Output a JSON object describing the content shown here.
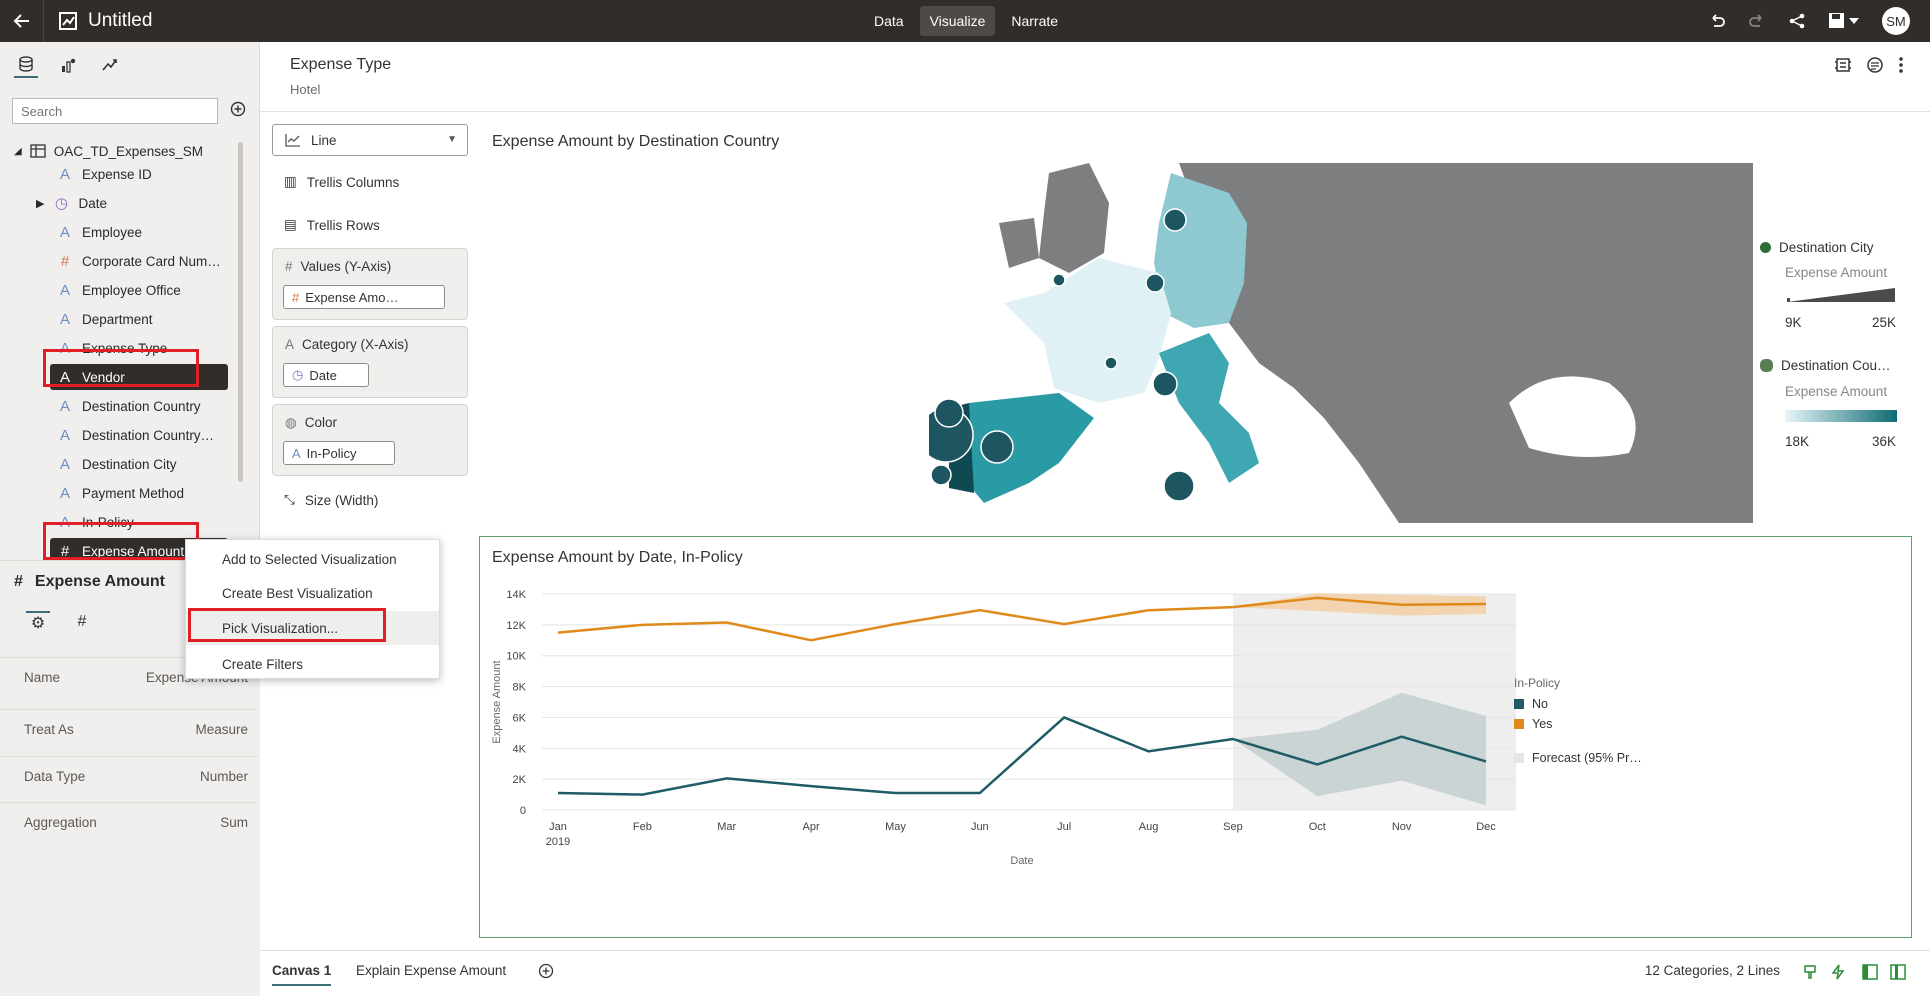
{
  "topbar": {
    "title": "Untitled",
    "modes": [
      "Data",
      "Visualize",
      "Narrate"
    ],
    "active_mode": "Visualize",
    "avatar": "SM"
  },
  "left": {
    "search_placeholder": "Search",
    "dataset": "OAC_TD_Expenses_SM",
    "items": [
      "Expense ID",
      "Date",
      "Employee",
      "Corporate Card Num…",
      "Employee Office",
      "Department",
      "Expense Type",
      "Vendor",
      "Destination Country",
      "Destination Country…",
      "Destination City",
      "Payment Method",
      "In-Policy",
      "Expense Amount"
    ]
  },
  "props": {
    "title": "Expense Amount",
    "rows": [
      {
        "k": "Name",
        "v": "Expense Amount"
      },
      {
        "k": "Treat As",
        "v": "Measure"
      },
      {
        "k": "Data Type",
        "v": "Number"
      },
      {
        "k": "Aggregation",
        "v": "Sum"
      }
    ]
  },
  "context_menu": [
    "Add to Selected Visualization",
    "Create Best Visualization",
    "Pick Visualization...",
    "Create Filters"
  ],
  "filter": {
    "label": "Expense Type",
    "value": "Hotel"
  },
  "grammar": {
    "viz_type": "Line",
    "trellis_columns": "Trellis Columns",
    "trellis_rows": "Trellis Rows",
    "values_label": "Values (Y-Axis)",
    "values_pill": "Expense Amo…",
    "category_label": "Category (X-Axis)",
    "category_pill": "Date",
    "color_label": "Color",
    "color_pill": "In-Policy",
    "size_label": "Size (Width)"
  },
  "map": {
    "title": "Expense Amount by Destination Country",
    "legend": {
      "city_label": "Destination City",
      "city_measure": "Expense Amount",
      "city_min": "9K",
      "city_max": "25K",
      "country_label": "Destination Cou…",
      "country_measure": "Expense Amount",
      "country_min": "18K",
      "country_max": "36K"
    }
  },
  "chart_data": {
    "type": "line",
    "title": "Expense Amount by Date, In-Policy",
    "xlabel": "Date",
    "ylabel": "Expense Amount",
    "categories": [
      "Jan",
      "Feb",
      "Mar",
      "Apr",
      "May",
      "Jun",
      "Jul",
      "Aug",
      "Sep",
      "Oct",
      "Nov",
      "Dec"
    ],
    "x_sublabel": "2019",
    "ylim": [
      0,
      14000
    ],
    "yticks": [
      "0",
      "2K",
      "4K",
      "6K",
      "8K",
      "10K",
      "12K",
      "14K"
    ],
    "series": [
      {
        "name": "No",
        "color": "#1f5c66",
        "values": [
          1100,
          1000,
          2050,
          1550,
          1100,
          1100,
          6000,
          3800,
          4600,
          2950,
          4750,
          3150
        ]
      },
      {
        "name": "Yes",
        "color": "#e08a1c",
        "values": [
          11500,
          12000,
          12150,
          11000,
          12050,
          12950,
          12050,
          12950,
          13150,
          13750,
          13300,
          13350
        ]
      }
    ],
    "forecast_start": "Sep",
    "forecast": {
      "No": {
        "lower": [
          4600,
          900,
          1900,
          300
        ],
        "upper": [
          4600,
          5200,
          7600,
          6100
        ]
      },
      "Yes": {
        "lower": [
          13150,
          12900,
          12600,
          12700
        ],
        "upper": [
          13150,
          14050,
          13950,
          13850
        ]
      }
    },
    "legend_title": "In-Policy",
    "legend_forecast": "Forecast (95% Pr…"
  },
  "bottom": {
    "tabs": [
      "Canvas 1",
      "Explain Expense Amount"
    ],
    "status": "12 Categories, 2 Lines"
  }
}
